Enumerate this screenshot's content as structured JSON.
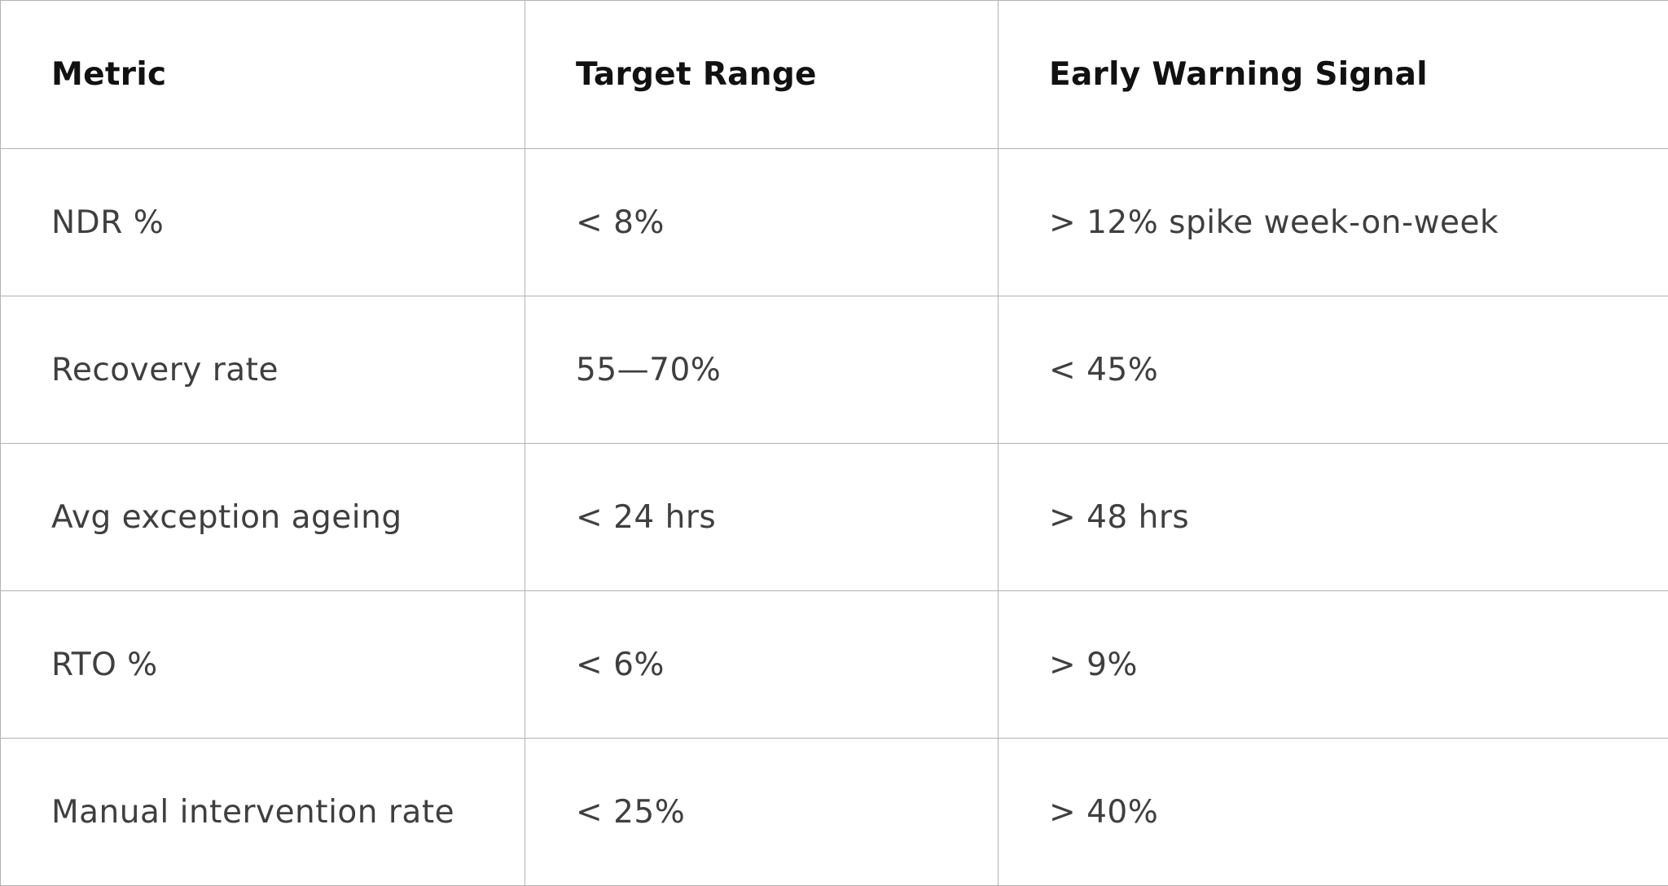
{
  "table": {
    "headers": [
      "Metric",
      "Target Range",
      "Early Warning Signal"
    ],
    "rows": [
      [
        "NDR %",
        "< 8%",
        "> 12% spike week-on-week"
      ],
      [
        "Recovery rate",
        "55—70%",
        "< 45%"
      ],
      [
        "Avg exception ageing",
        "< 24 hrs",
        "> 48 hrs"
      ],
      [
        "RTO %",
        "< 6%",
        "> 9%"
      ],
      [
        "Manual intervention rate",
        "< 25%",
        "> 40%"
      ]
    ]
  }
}
